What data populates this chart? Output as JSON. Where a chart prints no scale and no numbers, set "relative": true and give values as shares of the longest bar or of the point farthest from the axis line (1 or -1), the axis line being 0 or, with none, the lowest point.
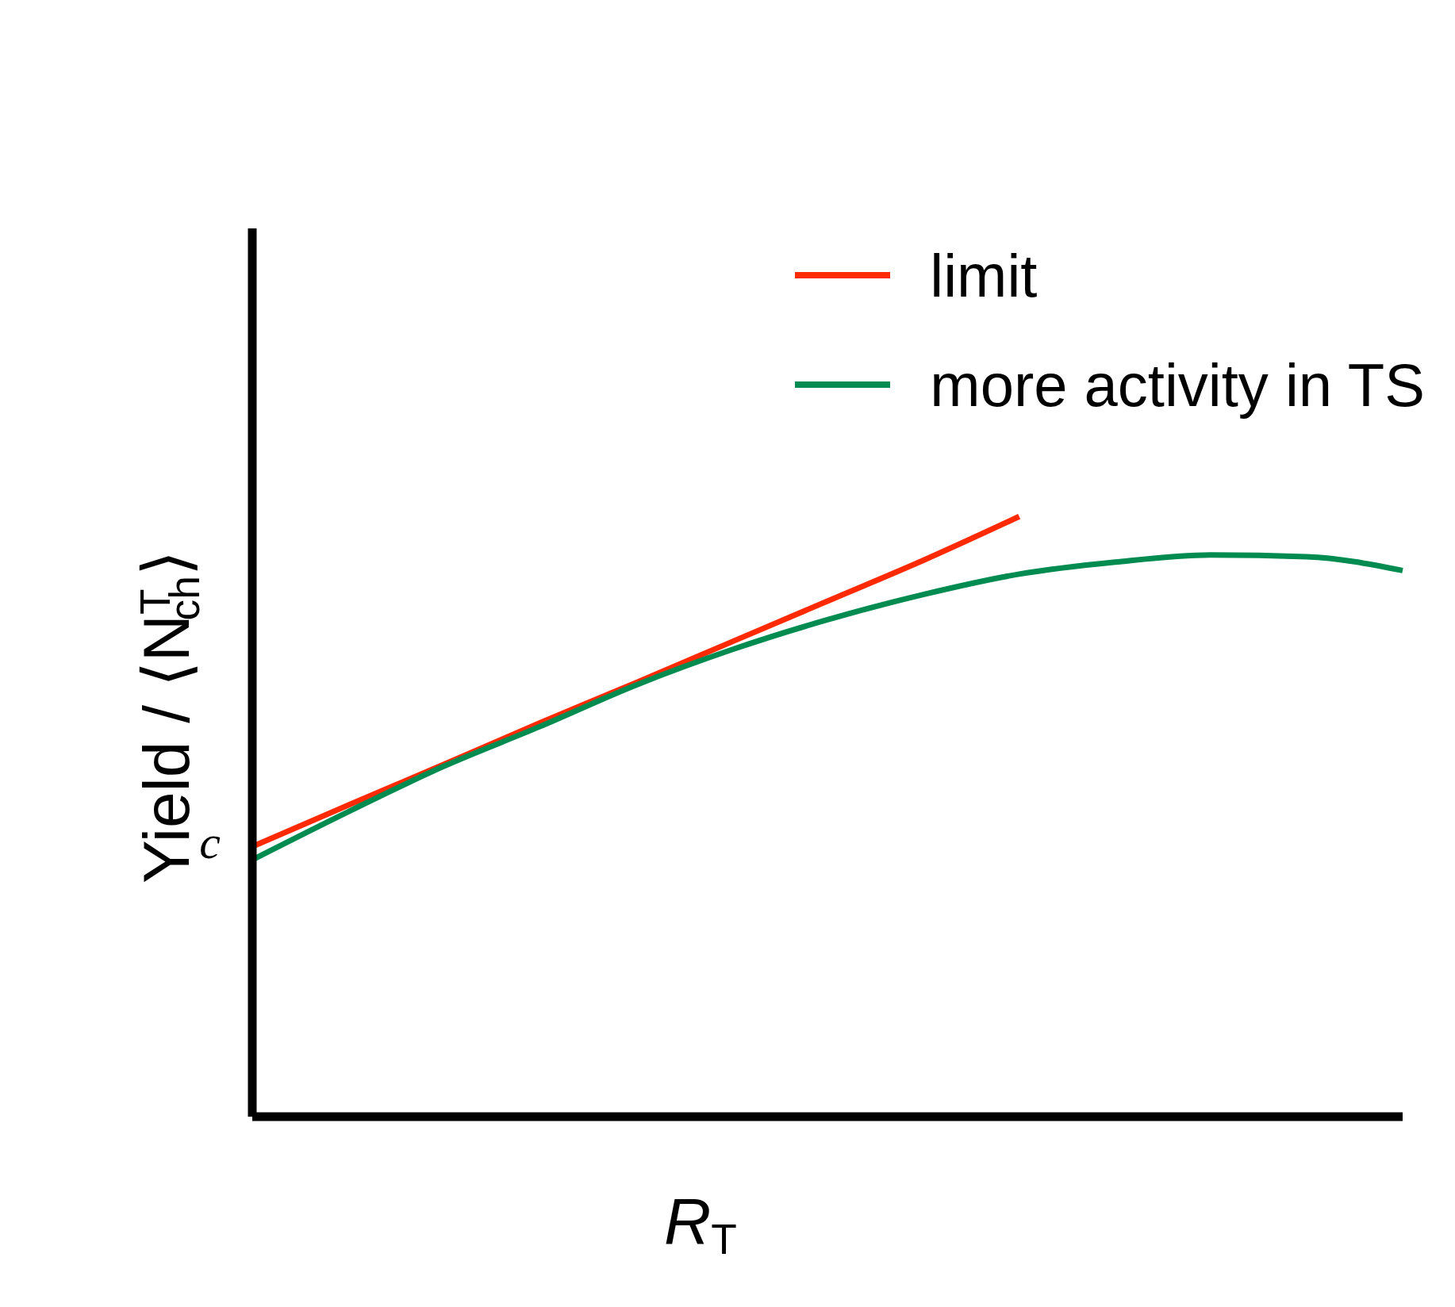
{
  "chart_data": {
    "type": "line",
    "relative": true,
    "xlabel": "R$_{T}$",
    "ylabel": "Yield / ⟨N$^{T}$$_{ch}$⟩",
    "legend": "top right",
    "annotations": [
      "c"
    ],
    "categories": [
      null,
      null,
      null,
      null,
      null,
      null,
      null,
      null,
      null,
      null,
      null,
      null,
      null
    ],
    "series": [
      {
        "name": "limit",
        "color": "#ff2a00",
        "values": [
          0.45,
          0.519,
          0.587,
          0.656,
          0.723,
          0.791,
          0.859,
          0.927,
          1.0,
          null,
          null,
          null,
          null
        ]
      },
      {
        "name": "more activity in TS",
        "color": "#008c50",
        "values": [
          0.428,
          0.508,
          0.584,
          0.65,
          0.719,
          0.778,
          0.828,
          0.87,
          0.904,
          0.924,
          0.936,
          0.933,
          0.91
        ]
      }
    ]
  }
}
